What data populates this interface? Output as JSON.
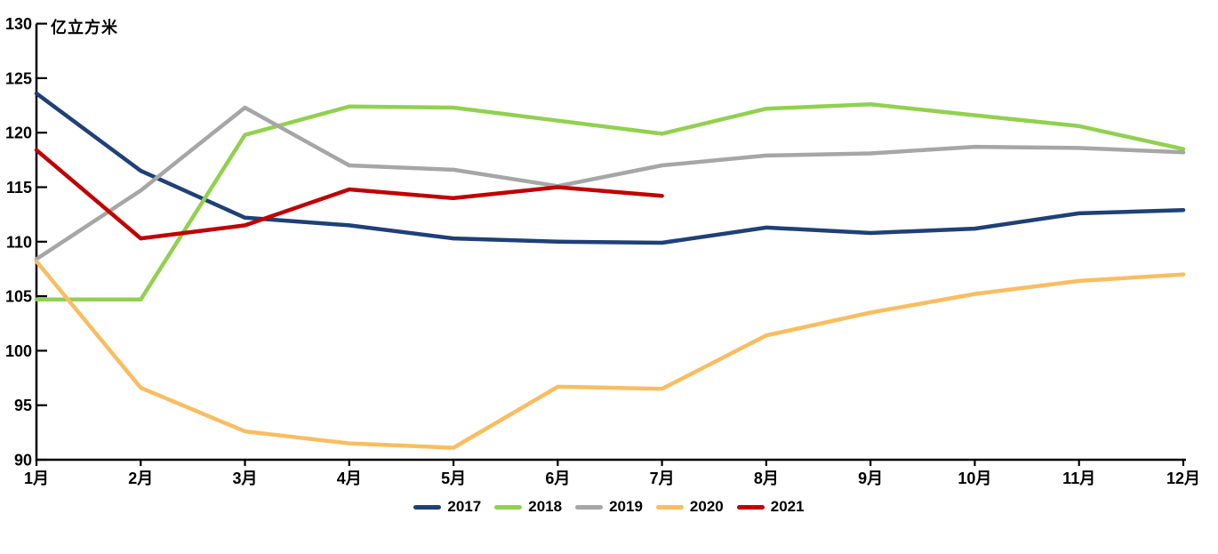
{
  "chart_data": {
    "type": "line",
    "title": "",
    "ylabel": "亿立方米",
    "xlabel": "",
    "categories": [
      "1月",
      "2月",
      "3月",
      "4月",
      "5月",
      "6月",
      "7月",
      "8月",
      "9月",
      "10月",
      "11月",
      "12月"
    ],
    "series": [
      {
        "name": "2017",
        "color": "#1F4077",
        "values": [
          123.6,
          116.5,
          112.2,
          111.5,
          110.3,
          110.0,
          109.9,
          111.3,
          110.8,
          111.2,
          112.6,
          112.9
        ]
      },
      {
        "name": "2018",
        "color": "#92D050",
        "values": [
          104.7,
          104.7,
          119.8,
          122.4,
          122.3,
          121.1,
          119.9,
          122.2,
          122.6,
          121.6,
          120.6,
          118.5
        ]
      },
      {
        "name": "2019",
        "color": "#A6A6A6",
        "values": [
          108.4,
          114.7,
          122.3,
          117.0,
          116.6,
          115.1,
          117.0,
          117.9,
          118.1,
          118.7,
          118.6,
          118.2
        ]
      },
      {
        "name": "2020",
        "color": "#F9BD61",
        "values": [
          108.2,
          96.6,
          92.6,
          91.5,
          91.1,
          96.7,
          96.5,
          101.4,
          103.5,
          105.2,
          106.4,
          107.0
        ]
      },
      {
        "name": "2021",
        "color": "#C00000",
        "values": [
          118.4,
          110.3,
          111.5,
          114.8,
          114.0,
          115.0,
          114.2,
          null,
          null,
          null,
          null,
          null
        ]
      }
    ],
    "ylim": [
      90,
      130
    ],
    "y_ticks": [
      90,
      95,
      100,
      105,
      110,
      115,
      120,
      125,
      130
    ],
    "grid": false,
    "legend_position": "bottom",
    "axis_color": "#000000"
  }
}
